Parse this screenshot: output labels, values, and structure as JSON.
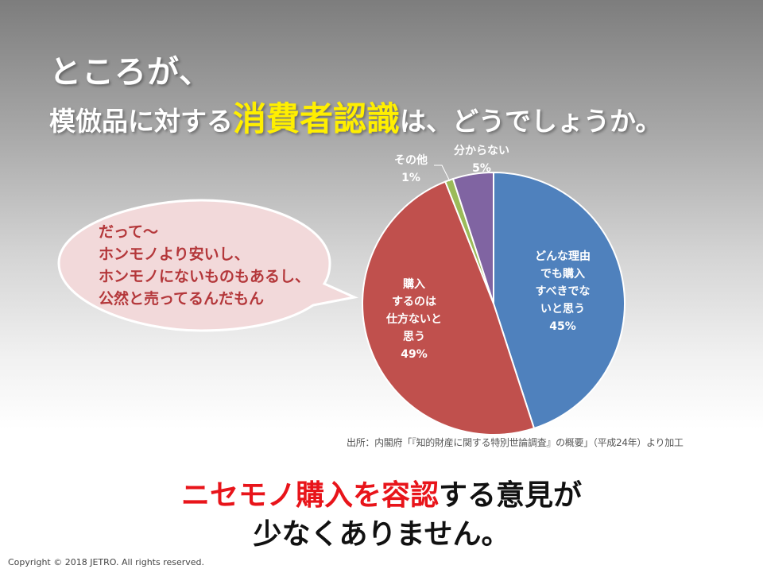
{
  "slide": {
    "title_line1": "ところが、",
    "title_line2_pre": "模倣品に対する",
    "title_line2_highlight": "消費者認識",
    "title_line2_post": "は、どうでしょうか。",
    "bubble_lines": [
      "だって～",
      "ホンモノより安いし、",
      "ホンモノにないものもあるし、",
      "公然と売ってるんだもん"
    ],
    "source": "出所：内閣府「『知的財産に関する特別世論調査』の概要」（平成24年）より加工",
    "bottom_line1_red": "ニセモノ購入を容認",
    "bottom_line1_rest": "する意見が",
    "bottom_line2": "少なくありません。",
    "copyright": "Copyright © 2018 JETRO. All rights reserved."
  },
  "chart_data": {
    "type": "pie",
    "start": "12 o'clock",
    "direction": "clockwise",
    "slices": [
      {
        "label": "どんな理由でも購入すべきでないと思う",
        "label_lines": [
          "どんな理由",
          "でも購入",
          "すべきでな",
          "いと思う"
        ],
        "value": 45,
        "display": "45%",
        "color": "#4f81bd"
      },
      {
        "label": "購入するのは仕方ないと思う",
        "label_lines": [
          "購入",
          "するのは",
          "仕方ないと",
          "思う"
        ],
        "value": 49,
        "display": "49%",
        "color": "#c0504d"
      },
      {
        "label": "その他",
        "label_lines": [
          "その他"
        ],
        "value": 1,
        "display": "1%",
        "color": "#9bbb59"
      },
      {
        "label": "分からない",
        "label_lines": [
          "分からない"
        ],
        "value": 5,
        "display": "5%",
        "color": "#8064a2"
      }
    ]
  }
}
